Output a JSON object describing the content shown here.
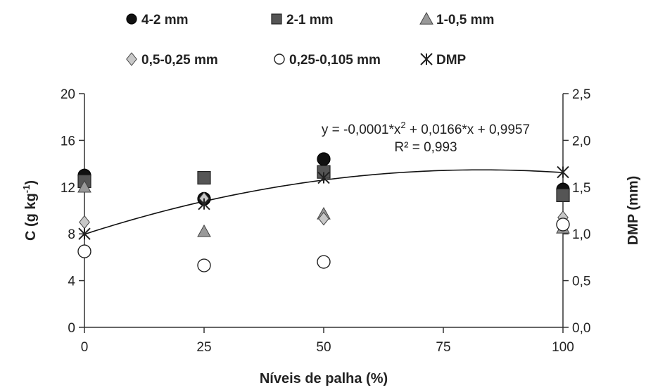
{
  "chart_data": {
    "type": "scatter",
    "xlabel": "Níveis de palha (%)",
    "ylabel": "C (g kg-1)",
    "ylabel_main": "C (g kg",
    "ylabel_sup": "-1",
    "ylabel_end": ")",
    "y2label": "DMP (mm)",
    "xlim": [
      0,
      100
    ],
    "ylim": [
      0,
      20
    ],
    "y2lim": [
      0,
      2.5
    ],
    "xticks": [
      "0",
      "25",
      "50",
      "75",
      "100"
    ],
    "xtick_values": [
      0,
      25,
      50,
      75,
      100
    ],
    "yticks": [
      "0",
      "4",
      "8",
      "12",
      "16",
      "20"
    ],
    "ytick_values": [
      0,
      4,
      8,
      12,
      16,
      20
    ],
    "y2ticks": [
      "0,0",
      "0,5",
      "1,0",
      "1,5",
      "2,0",
      "2,5"
    ],
    "y2tick_values": [
      0,
      0.5,
      1.0,
      1.5,
      2.0,
      2.5
    ],
    "x": [
      0,
      25,
      50,
      100
    ],
    "series": [
      {
        "name": "4-2 mm",
        "marker": "circle-filled",
        "color": "#111111",
        "axis": "left",
        "values": [
          13.0,
          11.0,
          14.4,
          11.8
        ]
      },
      {
        "name": "2-1 mm",
        "marker": "square",
        "color": "#555555",
        "axis": "left",
        "values": [
          12.5,
          12.8,
          13.3,
          11.3
        ]
      },
      {
        "name": "1-0,5 mm",
        "marker": "triangle",
        "color": "#999999",
        "axis": "left",
        "values": [
          12.0,
          8.2,
          9.7,
          8.5
        ]
      },
      {
        "name": "0,5-0,25 mm",
        "marker": "diamond",
        "color": "#c8c8c8",
        "axis": "left",
        "values": [
          9.0,
          11.0,
          9.3,
          9.4
        ]
      },
      {
        "name": "0,25-0,105  mm",
        "marker": "circle-open",
        "color": "#ffffff",
        "axis": "left",
        "values": [
          6.5,
          5.3,
          5.6,
          8.8
        ]
      },
      {
        "name": "DMP",
        "marker": "star",
        "color": "#222222",
        "axis": "right",
        "values": [
          1.0,
          1.32,
          1.6,
          1.66
        ]
      }
    ],
    "fit": {
      "series": "DMP",
      "coefficients": [
        -0.0001,
        0.0166,
        0.9957
      ],
      "equation_pre": "y = -0,0001*x",
      "equation_sup": "2",
      "equation_post": " + 0,0166*x + 0,9957",
      "r2": "R² = 0,993"
    },
    "legend_position": "top",
    "grid": false
  }
}
